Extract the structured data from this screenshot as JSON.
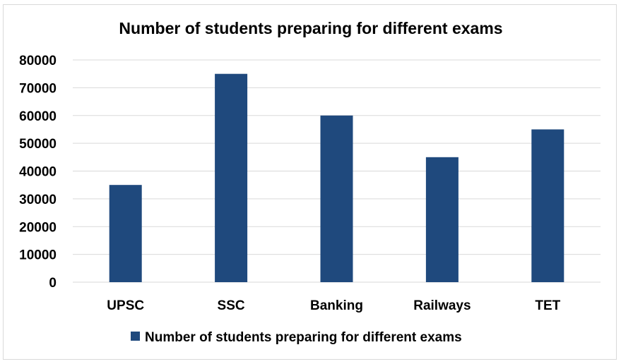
{
  "chart_data": {
    "type": "bar",
    "title": "Number of students preparing for different exams",
    "categories": [
      "UPSC",
      "SSC",
      "Banking",
      "Railways",
      "TET"
    ],
    "series": [
      {
        "name": "Number of students preparing for different exams",
        "values": [
          35000,
          75000,
          60000,
          45000,
          55000
        ],
        "color": "#1f497d"
      }
    ],
    "ylim": [
      0,
      80000
    ],
    "yticks": [
      0,
      10000,
      20000,
      30000,
      40000,
      50000,
      60000,
      70000,
      80000
    ],
    "grid": true,
    "legend": "bottom",
    "colors": {
      "bar": "#1f497d",
      "grid": "#d9d9d9",
      "frame": "#d9d9d9"
    }
  }
}
